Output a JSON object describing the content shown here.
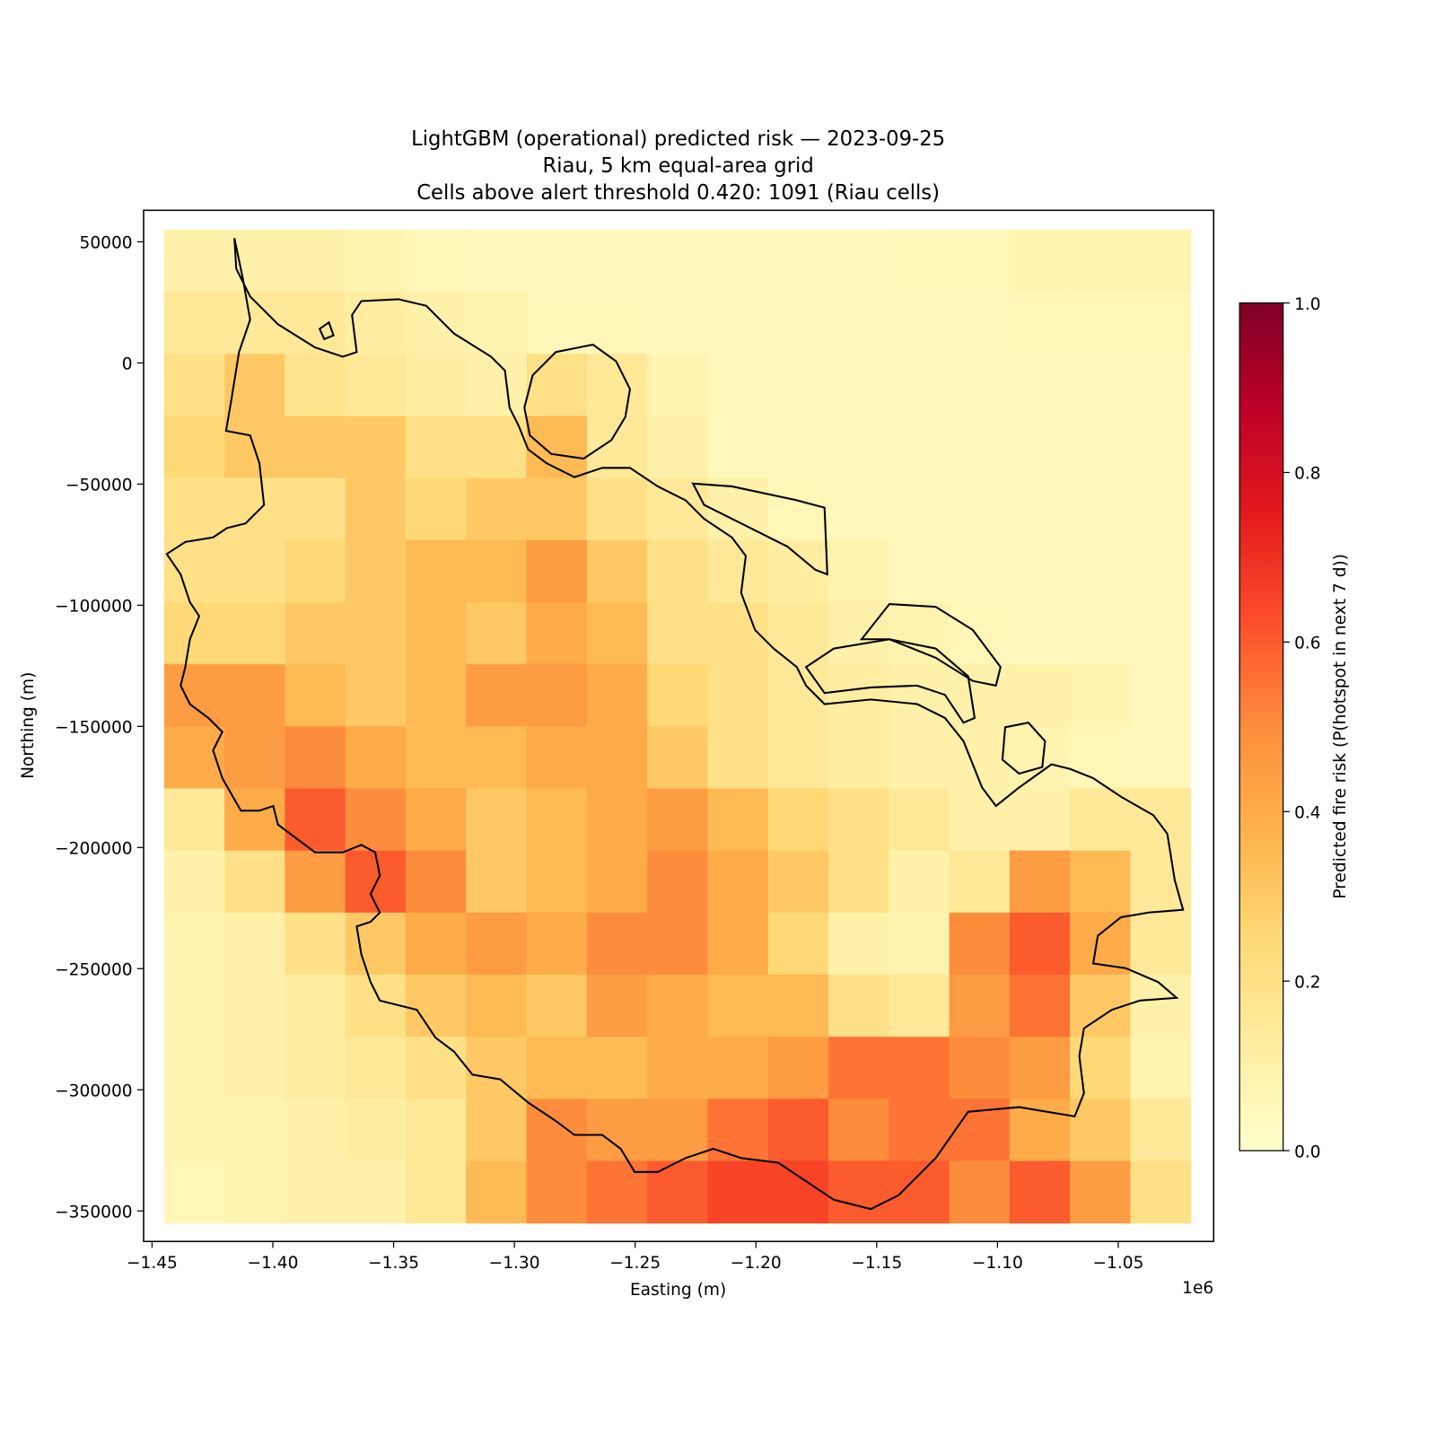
{
  "chart_data": {
    "type": "heatmap",
    "title": "LightGBM (operational) predicted risk — 2023-09-25",
    "subtitle": "Riau, 5 km equal-area grid",
    "annotation": "Cells above alert threshold 0.420: 1091 (Riau cells)",
    "x_label": "Easting (m)",
    "y_label": "Northing (m)",
    "x_offset_label": "1e6",
    "colorbar_label": "Predicted fire risk (P(hotspot in next 7 d))",
    "colormap": "YlOrRd",
    "xlim": [
      -1453500,
      -1010500
    ],
    "ylim": [
      -362600,
      63000
    ],
    "xticks": [
      {
        "value": -1450000,
        "label": "−1.45"
      },
      {
        "value": -1400000,
        "label": "−1.40"
      },
      {
        "value": -1350000,
        "label": "−1.35"
      },
      {
        "value": -1300000,
        "label": "−1.30"
      },
      {
        "value": -1250000,
        "label": "−1.25"
      },
      {
        "value": -1200000,
        "label": "−1.20"
      },
      {
        "value": -1150000,
        "label": "−1.15"
      },
      {
        "value": -1100000,
        "label": "−1.10"
      },
      {
        "value": -1050000,
        "label": "−1.05"
      }
    ],
    "yticks": [
      50000,
      0,
      {
        "value": -50000,
        "label": "−50000"
      },
      {
        "value": -100000,
        "label": "−100000"
      },
      {
        "value": -150000,
        "label": "−150000"
      },
      {
        "value": -200000,
        "label": "−200000"
      },
      {
        "value": -250000,
        "label": "−250000"
      },
      {
        "value": -300000,
        "label": "−300000"
      },
      {
        "value": -350000,
        "label": "−350000"
      }
    ],
    "clim": [
      0,
      1
    ],
    "cticks": [
      {
        "value": 0,
        "label": "0.0"
      },
      0.2,
      0.4,
      0.6,
      0.8,
      {
        "value": 1,
        "label": "1.0"
      }
    ],
    "x": [
      -1432500,
      -1407500,
      -1382500,
      -1357500,
      -1332500,
      -1307500,
      -1282500,
      -1257500,
      -1232500,
      -1207500,
      -1182500,
      -1157500,
      -1132500,
      -1107500,
      -1082500,
      -1057500,
      -1032500
    ],
    "y": [
      42187.5,
      16562.5,
      -9062.5,
      -34687.5,
      -60312.5,
      -85937.5,
      -111562.5,
      -137187.5,
      -162812.5,
      -188437.5,
      -214062.5,
      -239687.5,
      -265312.5,
      -290937.5,
      -316562.5,
      -342187.5
    ],
    "z": [
      [
        0.1,
        0.1,
        0.1,
        0.08,
        0.06,
        0.05,
        0.05,
        0.05,
        0.05,
        0.05,
        0.05,
        0.05,
        0.06,
        0.06,
        0.08,
        0.08,
        0.08
      ],
      [
        0.15,
        0.15,
        0.15,
        0.12,
        0.1,
        0.08,
        0.06,
        0.06,
        0.05,
        0.05,
        0.05,
        0.05,
        0.05,
        0.05,
        0.06,
        0.06,
        0.06
      ],
      [
        0.2,
        0.3,
        0.18,
        0.15,
        0.12,
        0.1,
        0.2,
        0.15,
        0.08,
        0.05,
        0.05,
        0.05,
        0.05,
        0.05,
        0.05,
        0.05,
        0.05
      ],
      [
        0.25,
        0.3,
        0.3,
        0.3,
        0.2,
        0.2,
        0.35,
        0.15,
        0.1,
        0.05,
        0.05,
        0.05,
        0.05,
        0.05,
        0.05,
        0.05,
        0.05
      ],
      [
        0.2,
        0.2,
        0.2,
        0.3,
        0.25,
        0.3,
        0.3,
        0.2,
        0.15,
        0.1,
        0.06,
        0.05,
        0.05,
        0.05,
        0.05,
        0.05,
        0.05
      ],
      [
        0.2,
        0.2,
        0.25,
        0.3,
        0.35,
        0.35,
        0.45,
        0.3,
        0.2,
        0.15,
        0.12,
        0.08,
        0.05,
        0.05,
        0.05,
        0.05,
        0.05
      ],
      [
        0.25,
        0.25,
        0.3,
        0.3,
        0.35,
        0.3,
        0.4,
        0.35,
        0.2,
        0.2,
        0.15,
        0.1,
        0.08,
        0.06,
        0.05,
        0.05,
        0.05
      ],
      [
        0.45,
        0.45,
        0.35,
        0.3,
        0.35,
        0.45,
        0.45,
        0.4,
        0.25,
        0.2,
        0.15,
        0.12,
        0.1,
        0.1,
        0.1,
        0.08,
        0.05
      ],
      [
        0.4,
        0.45,
        0.5,
        0.4,
        0.35,
        0.35,
        0.4,
        0.4,
        0.3,
        0.2,
        0.15,
        0.12,
        0.1,
        0.1,
        0.08,
        0.06,
        0.05
      ],
      [
        0.15,
        0.4,
        0.6,
        0.5,
        0.4,
        0.3,
        0.35,
        0.4,
        0.45,
        0.35,
        0.25,
        0.2,
        0.15,
        0.1,
        0.1,
        0.15,
        0.15
      ],
      [
        0.1,
        0.2,
        0.45,
        0.6,
        0.5,
        0.3,
        0.35,
        0.4,
        0.5,
        0.4,
        0.3,
        0.2,
        0.1,
        0.15,
        0.45,
        0.35,
        0.15
      ],
      [
        0.08,
        0.1,
        0.2,
        0.3,
        0.4,
        0.45,
        0.4,
        0.5,
        0.5,
        0.4,
        0.25,
        0.1,
        0.08,
        0.5,
        0.6,
        0.4,
        0.15
      ],
      [
        0.08,
        0.1,
        0.12,
        0.2,
        0.3,
        0.35,
        0.3,
        0.45,
        0.4,
        0.35,
        0.35,
        0.2,
        0.15,
        0.45,
        0.55,
        0.3,
        0.1
      ],
      [
        0.08,
        0.1,
        0.12,
        0.15,
        0.2,
        0.3,
        0.35,
        0.35,
        0.4,
        0.4,
        0.45,
        0.55,
        0.55,
        0.5,
        0.45,
        0.25,
        0.08
      ],
      [
        0.08,
        0.08,
        0.1,
        0.12,
        0.15,
        0.3,
        0.5,
        0.45,
        0.45,
        0.55,
        0.6,
        0.5,
        0.55,
        0.55,
        0.4,
        0.3,
        0.15
      ],
      [
        0.06,
        0.08,
        0.1,
        0.1,
        0.15,
        0.35,
        0.5,
        0.55,
        0.6,
        0.65,
        0.65,
        0.6,
        0.6,
        0.5,
        0.6,
        0.45,
        0.2
      ]
    ]
  }
}
